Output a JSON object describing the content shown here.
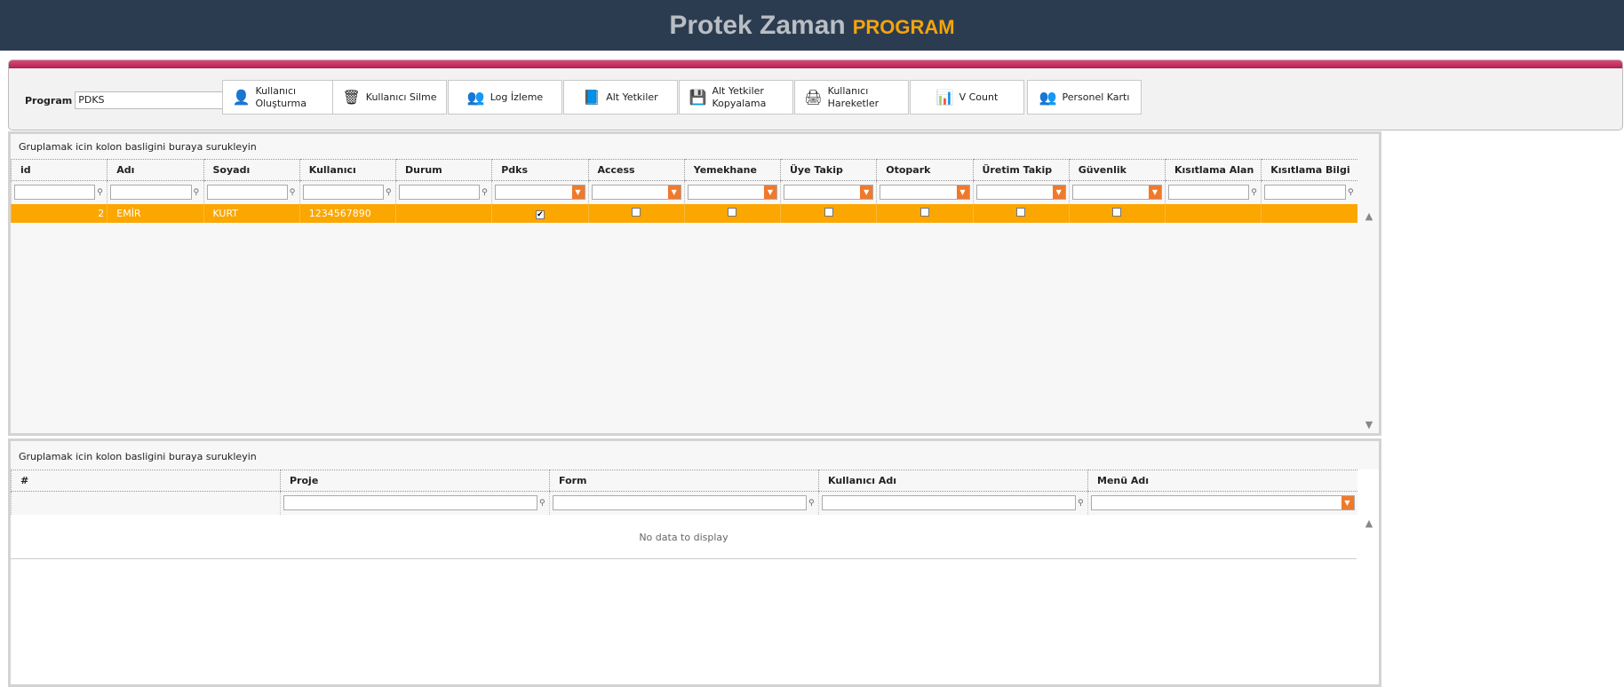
{
  "header": {
    "title": "Protek Zaman",
    "subtitle": "PROGRAM"
  },
  "toolbar": {
    "program_label": "Program",
    "program_value": "PDKS",
    "buttons": [
      {
        "label": "Kullanıcı Oluşturma",
        "icon": "user-info-icon"
      },
      {
        "label": "Kullanıcı Silme",
        "icon": "trash-icon"
      },
      {
        "label": "Log İzleme",
        "icon": "users-icon"
      },
      {
        "label": "Alt Yetkiler",
        "icon": "folder-icon"
      },
      {
        "label": "Alt Yetkiler Kopyalama",
        "icon": "save-icon"
      },
      {
        "label": "Kullanıcı Hareketler",
        "icon": "printer-icon"
      },
      {
        "label": "V Count",
        "icon": "chart-icon"
      },
      {
        "label": "Personel Kartı",
        "icon": "people-icon"
      }
    ]
  },
  "grid1": {
    "group_hint": "Gruplamak icin kolon basligini buraya surukleyin",
    "columns": [
      "id",
      "Adı",
      "Soyadı",
      "Kullanıcı",
      "Durum",
      "Pdks",
      "Access",
      "Yemekhane",
      "Üye Takip",
      "Otopark",
      "Üretim Takip",
      "Güvenlik",
      "Kısıtlama Alan",
      "Kısıtlama Bilgi"
    ],
    "rows": [
      {
        "id": "2",
        "ad": "EMİR",
        "soyad": "KURT",
        "kullanici": "1234567890",
        "durum": "",
        "pdks": true,
        "access": false,
        "yemekhane": false,
        "uye_takip": false,
        "otopark": false,
        "uretim_takip": false,
        "guvenlik": false,
        "kisitlama_alan": "",
        "kisitlama_bilgi": ""
      }
    ],
    "accent": "#fca600"
  },
  "grid2": {
    "group_hint": "Gruplamak icin kolon basligini buraya surukleyin",
    "columns": [
      "#",
      "Proje",
      "Form",
      "Kullanıcı Adı",
      "Menü Adı"
    ],
    "empty_text": "No data to display"
  }
}
